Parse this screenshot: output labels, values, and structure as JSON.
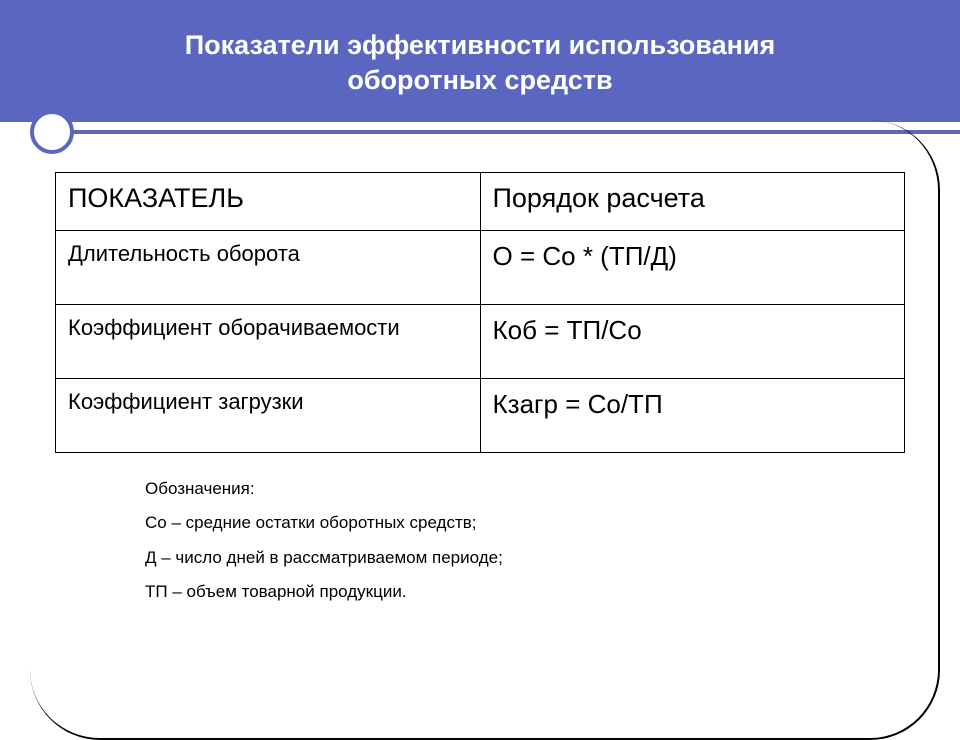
{
  "header": {
    "line1": "Показатели эффективности использования",
    "line2": "оборотных средств"
  },
  "table": {
    "headers": [
      "ПОКАЗАТЕЛЬ",
      "Порядок расчета"
    ],
    "rows": [
      {
        "indicator": "Длительность оборота",
        "formula": "О = Со * (ТП/Д)"
      },
      {
        "indicator": "Коэффициент оборачиваемости",
        "formula": "Коб = ТП/Со"
      },
      {
        "indicator": "Коэффициент загрузки",
        "formula": "Кзагр = Со/ТП"
      }
    ]
  },
  "legend": {
    "title": "Обозначения:",
    "items": [
      "Со – средние остатки оборотных средств;",
      "Д – число дней в рассматриваемом периоде;",
      "ТП – объем товарной продукции."
    ]
  },
  "colors": {
    "header_bg": "#5a66c0",
    "header_text": "#ffffff",
    "border": "#000000",
    "page_bg": "#ffffff"
  }
}
